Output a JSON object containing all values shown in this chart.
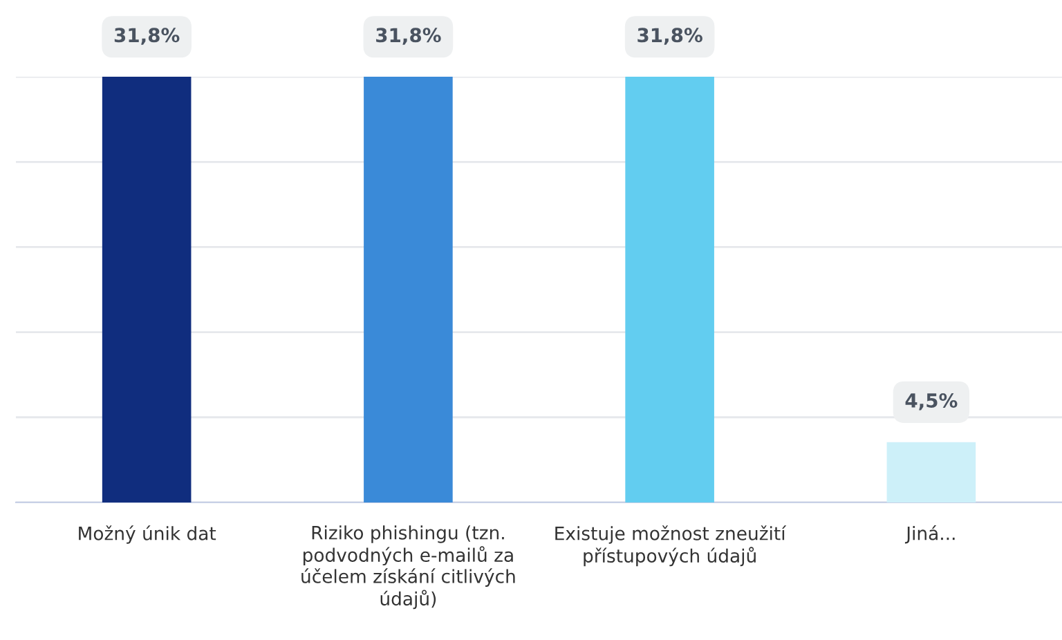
{
  "chart_data": {
    "type": "bar",
    "categories": [
      "Možný únik dat",
      "Riziko phishingu (tzn. podvodných e-mailů za účelem získání citlivých údajů)",
      "Existuje možnost zneužití přístupových údajů",
      "Jiná..."
    ],
    "values": [
      31.8,
      31.8,
      31.8,
      4.5
    ],
    "colors": [
      "#102d7e",
      "#3a8ad8",
      "#62cdf0",
      "#cdf0f9"
    ],
    "value_labels": [
      "31,8%",
      "31,8%",
      "31,8%",
      "4,5%"
    ],
    "ylim": [
      0,
      31.8
    ],
    "yticks": [
      {
        "value": 0,
        "label": null
      },
      {
        "value": 6.36,
        "label": null
      },
      {
        "value": 12.72,
        "label": null
      },
      {
        "value": 19.08,
        "label": null
      },
      {
        "value": 25.44,
        "label": null
      },
      {
        "value": 31.8,
        "label": null
      }
    ],
    "grid": "y",
    "legend": false
  }
}
